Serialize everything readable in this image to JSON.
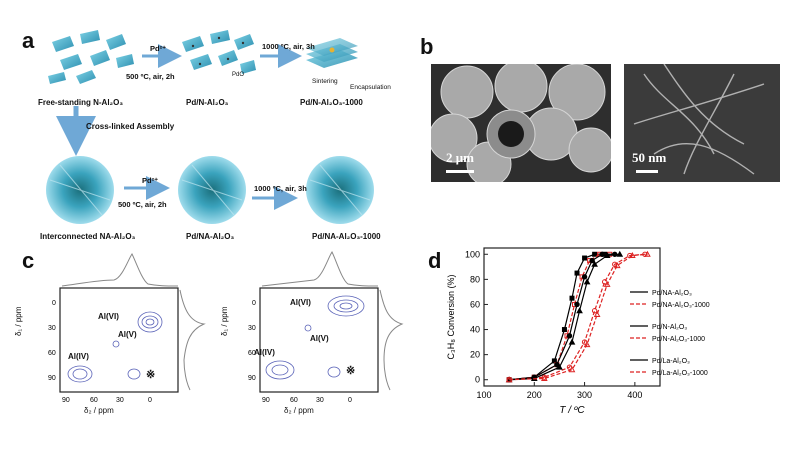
{
  "panels": {
    "a": {
      "letter": "a",
      "top_label_1": "Free-standing N-Al₂O₃",
      "top_label_2": "Pd/N-Al₂O₃",
      "top_label_3": "Pd/N-Al₂O₃-1000",
      "arrow1_top": "Pd²⁺",
      "arrow1_bottom": "500 ºC, air, 2h",
      "arrow2_top": "1000 ºC, air, 3h",
      "pdo_label": "PdO",
      "sintering": "Sintering",
      "encapsulation": "Encapsulation",
      "assembly": "Cross-linked Assembly",
      "bottom_label_1": "Interconnected NA-Al₂O₃",
      "bottom_label_2": "Pd/NA-Al₂O₃",
      "bottom_label_3": "Pd/NA-Al₂O₃-1000",
      "arrow3_top": "Pd²⁺",
      "arrow3_bottom": "500 ºC, air, 2h",
      "arrow4_top": "1000 ºC, air, 3h"
    },
    "b": {
      "letter": "b",
      "scale_left": "2 μm",
      "scale_right": "50 nm"
    },
    "c": {
      "letter": "c",
      "y_label": "δ₁ / ppm",
      "x_label": "δ₂ / ppm",
      "x_ticks": [
        "90",
        "60",
        "30",
        "0"
      ],
      "y_ticks": [
        "0",
        "30",
        "60",
        "90"
      ],
      "peaks": [
        "Al(VI)",
        "Al(V)",
        "Al(IV)"
      ],
      "star": "※"
    },
    "d": {
      "letter": "d"
    }
  },
  "chart_data": {
    "type": "line",
    "xlabel": "T / ºC",
    "ylabel": "C₃H₈ Conversion (%)",
    "xlim": [
      100,
      450
    ],
    "ylim": [
      -5,
      105
    ],
    "xticks": [
      100,
      200,
      300,
      400
    ],
    "yticks": [
      0,
      20,
      40,
      60,
      80,
      100
    ],
    "series": [
      {
        "name": "Pd/NA-Al₂O₃",
        "color": "#000000",
        "dash": false,
        "marker": "square",
        "x": [
          150,
          200,
          240,
          260,
          275,
          285,
          300,
          320,
          340
        ],
        "y": [
          0,
          2,
          15,
          40,
          65,
          85,
          97,
          100,
          100
        ]
      },
      {
        "name": "Pd/NA-Al₂O₃-1000",
        "color": "#dd2222",
        "dash": true,
        "marker": "square",
        "x": [
          150,
          200,
          245,
          265,
          280,
          295,
          310,
          330,
          350
        ],
        "y": [
          0,
          2,
          12,
          35,
          60,
          82,
          95,
          100,
          100
        ]
      },
      {
        "name": "Pd/N-Al₂O₃",
        "color": "#000000",
        "dash": false,
        "marker": "circle",
        "x": [
          150,
          200,
          245,
          270,
          285,
          300,
          315,
          335,
          360
        ],
        "y": [
          0,
          2,
          12,
          35,
          60,
          82,
          95,
          100,
          100
        ]
      },
      {
        "name": "Pd/N-Al₂O₃-1000",
        "color": "#dd2222",
        "dash": true,
        "marker": "circle",
        "x": [
          150,
          220,
          270,
          300,
          320,
          340,
          360,
          390,
          420
        ],
        "y": [
          0,
          2,
          10,
          30,
          55,
          78,
          92,
          99,
          100
        ]
      },
      {
        "name": "Pd/La-Al₂O₃",
        "color": "#000000",
        "dash": false,
        "marker": "triangle",
        "x": [
          150,
          200,
          250,
          275,
          290,
          305,
          320,
          345,
          370
        ],
        "y": [
          0,
          1,
          10,
          30,
          55,
          78,
          92,
          99,
          100
        ]
      },
      {
        "name": "Pd/La-Al₂O₃-1000",
        "color": "#dd2222",
        "dash": true,
        "marker": "triangle",
        "x": [
          150,
          220,
          275,
          305,
          325,
          345,
          365,
          395,
          425
        ],
        "y": [
          0,
          1,
          8,
          28,
          52,
          76,
          91,
          99,
          100
        ]
      }
    ]
  }
}
